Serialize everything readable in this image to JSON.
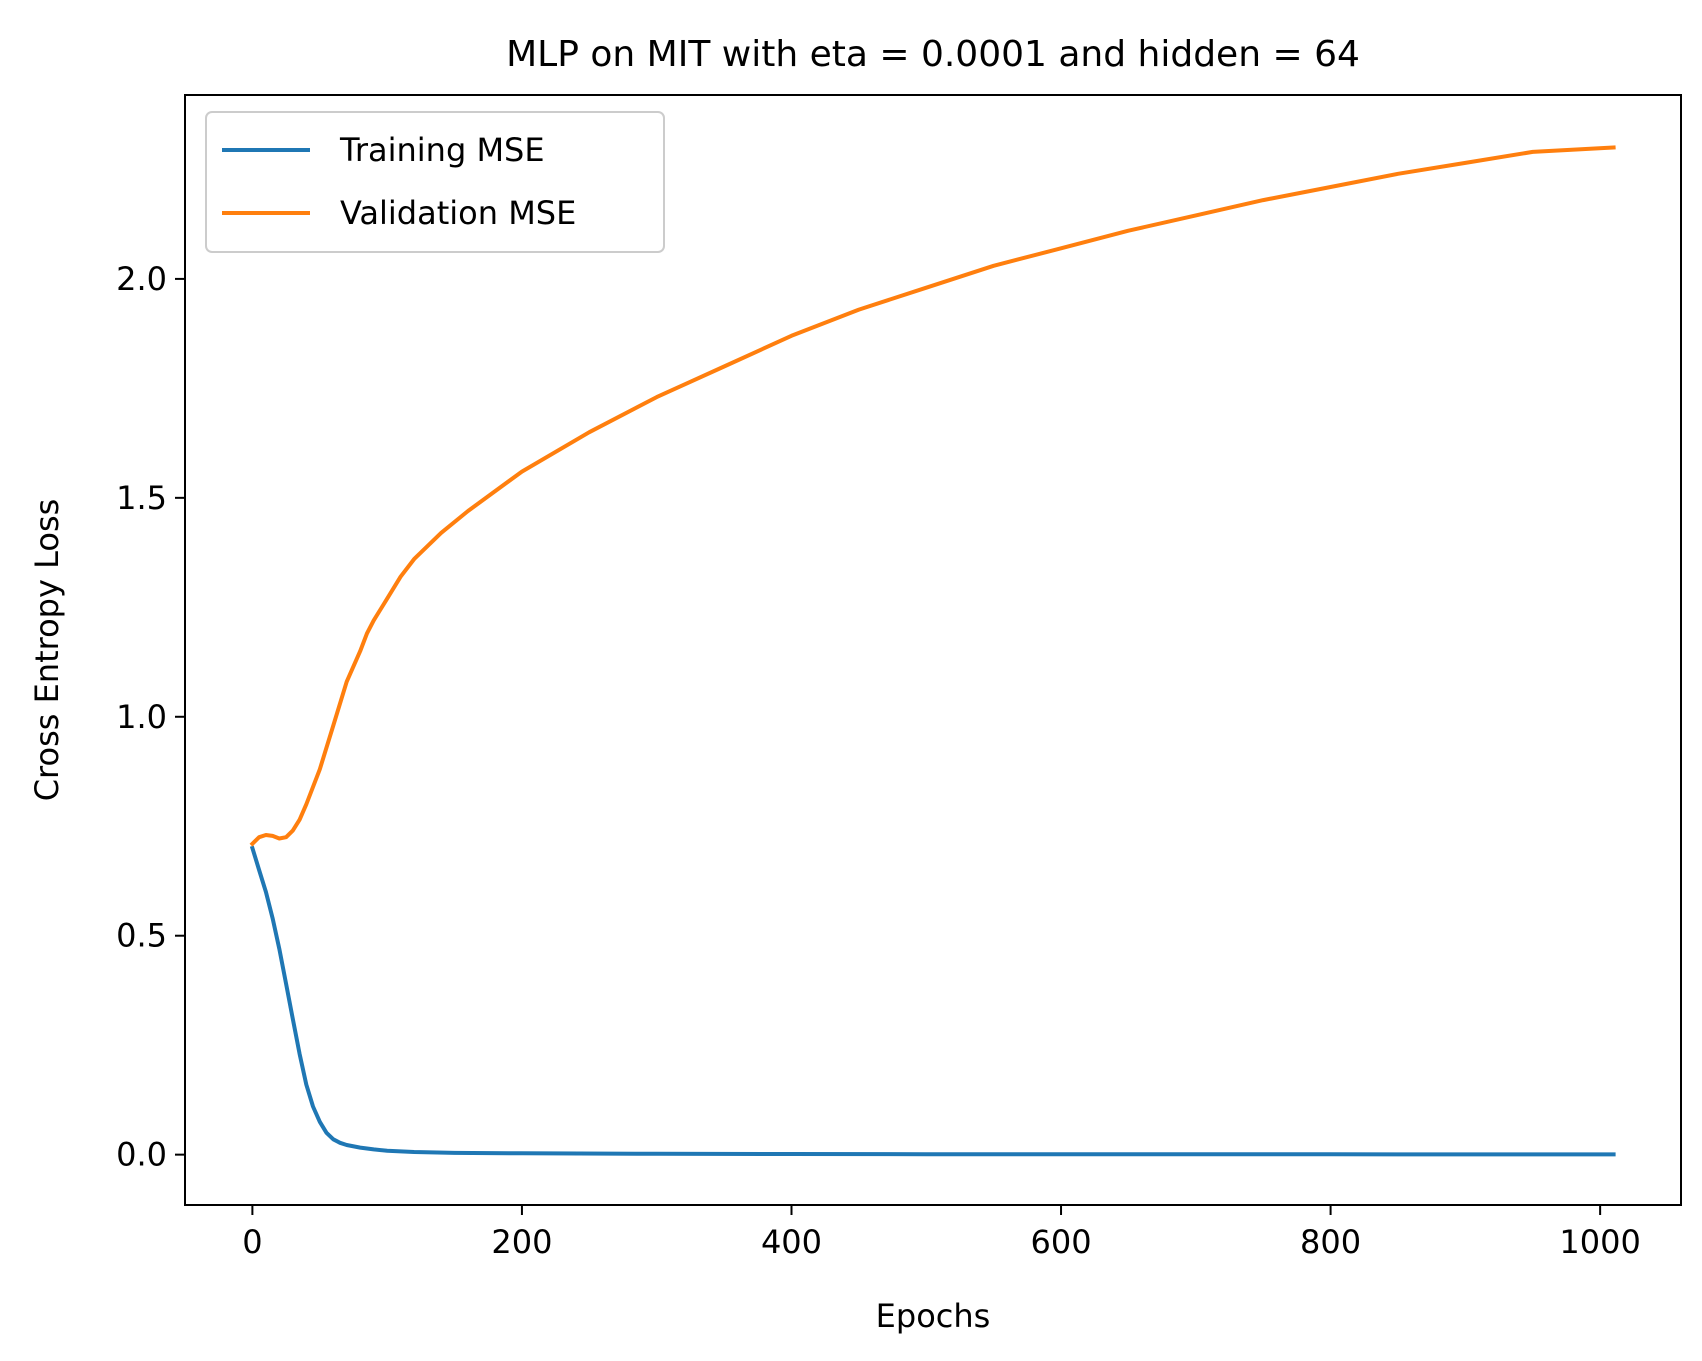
{
  "chart_data": {
    "type": "line",
    "title": "MLP on MIT with eta = 0.0001 and hidden = 64",
    "xlabel": "Epochs",
    "ylabel": "Cross Entropy Loss",
    "xlim": [
      -50,
      1060
    ],
    "ylim": [
      -0.115,
      2.42
    ],
    "xticks": [
      0,
      200,
      400,
      600,
      800,
      1000
    ],
    "xtick_labels": [
      "0",
      "200",
      "400",
      "600",
      "800",
      "1000"
    ],
    "yticks": [
      0.0,
      0.5,
      1.0,
      1.5,
      2.0
    ],
    "ytick_labels": [
      "0.0",
      "0.5",
      "1.0",
      "1.5",
      "2.0"
    ],
    "grid": false,
    "legend_position": "upper-left",
    "series": [
      {
        "name": "Training MSE",
        "color": "#1f77b4",
        "x": [
          0,
          5,
          10,
          15,
          20,
          25,
          30,
          35,
          40,
          45,
          50,
          55,
          60,
          65,
          70,
          80,
          90,
          100,
          120,
          150,
          200,
          300,
          400,
          500,
          600,
          700,
          800,
          900,
          1010
        ],
        "y": [
          0.7,
          0.65,
          0.6,
          0.54,
          0.47,
          0.39,
          0.31,
          0.23,
          0.16,
          0.11,
          0.075,
          0.05,
          0.035,
          0.027,
          0.022,
          0.016,
          0.012,
          0.009,
          0.006,
          0.004,
          0.003,
          0.002,
          0.0015,
          0.001,
          0.001,
          0.0008,
          0.0007,
          0.0006,
          0.0005
        ]
      },
      {
        "name": "Validation MSE",
        "color": "#ff7f0e",
        "x": [
          0,
          5,
          10,
          15,
          20,
          25,
          30,
          35,
          40,
          50,
          60,
          70,
          80,
          85,
          90,
          100,
          110,
          120,
          140,
          160,
          200,
          250,
          300,
          350,
          400,
          450,
          500,
          550,
          600,
          650,
          700,
          750,
          800,
          850,
          900,
          950,
          1010
        ],
        "y": [
          0.71,
          0.725,
          0.73,
          0.728,
          0.722,
          0.725,
          0.74,
          0.765,
          0.8,
          0.88,
          0.98,
          1.08,
          1.15,
          1.19,
          1.22,
          1.27,
          1.32,
          1.36,
          1.42,
          1.47,
          1.56,
          1.65,
          1.73,
          1.8,
          1.87,
          1.93,
          1.98,
          2.03,
          2.07,
          2.11,
          2.145,
          2.18,
          2.21,
          2.24,
          2.265,
          2.29,
          2.3
        ]
      }
    ]
  }
}
